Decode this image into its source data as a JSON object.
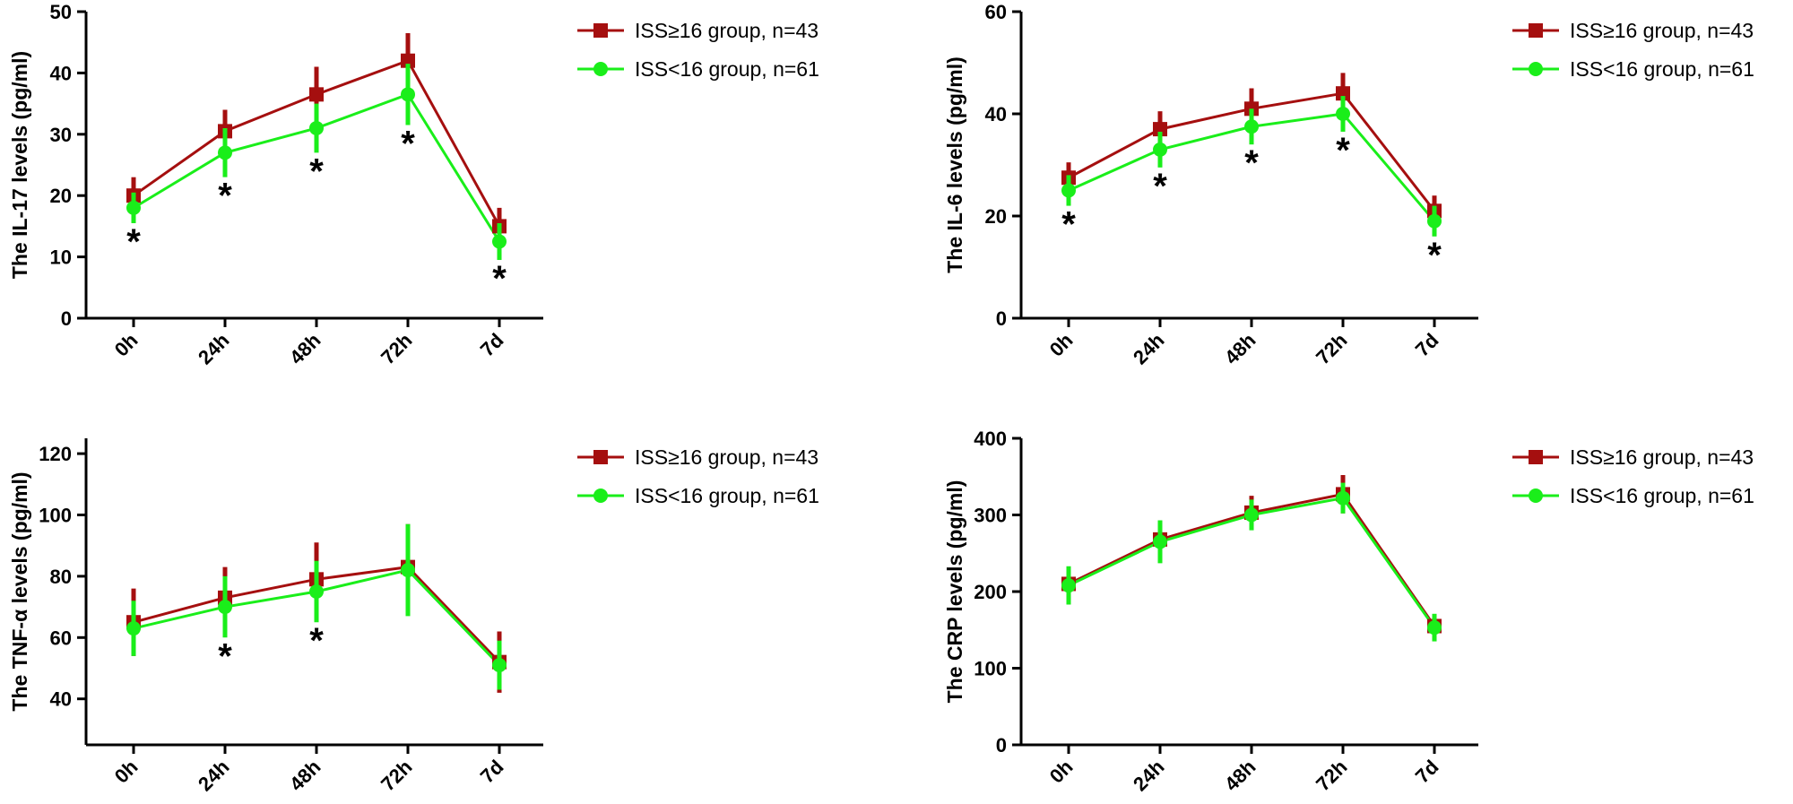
{
  "chart_data": [
    {
      "type": "line",
      "y_label": "The IL-17 levels (pg/ml)",
      "categories": [
        "0h",
        "24h",
        "48h",
        "72h",
        "7d"
      ],
      "ylim": [
        0,
        50
      ],
      "yticks": [
        0,
        10,
        20,
        30,
        40,
        50
      ],
      "series": [
        {
          "name": "ISS≥16 group, n=43",
          "color": "#a50f0f",
          "marker": "square",
          "values": [
            20,
            30.5,
            36.5,
            42,
            15
          ],
          "errors": [
            3,
            3.5,
            4.5,
            4.5,
            3
          ]
        },
        {
          "name": "ISS<16 group, n=61",
          "color": "#1aee1a",
          "marker": "circle",
          "values": [
            18,
            27,
            31,
            36.5,
            12.5
          ],
          "errors": [
            2.5,
            4,
            4,
            5,
            3
          ]
        }
      ],
      "annotations": [
        {
          "text": "*",
          "category": "0h"
        },
        {
          "text": "*",
          "category": "24h"
        },
        {
          "text": "*",
          "category": "48h"
        },
        {
          "text": "*",
          "category": "72h"
        },
        {
          "text": "*",
          "category": "7d"
        }
      ]
    },
    {
      "type": "line",
      "y_label": "The IL-6 levels (pg/ml)",
      "categories": [
        "0h",
        "24h",
        "48h",
        "72h",
        "7d"
      ],
      "ylim": [
        0,
        60
      ],
      "yticks": [
        0,
        20,
        40,
        60
      ],
      "series": [
        {
          "name": "ISS≥16 group, n=43",
          "color": "#a50f0f",
          "marker": "square",
          "values": [
            27.5,
            37,
            41,
            44,
            21
          ],
          "errors": [
            3,
            3.5,
            4,
            4,
            3
          ]
        },
        {
          "name": "ISS<16 group, n=61",
          "color": "#1aee1a",
          "marker": "circle",
          "values": [
            25,
            33,
            37.5,
            40,
            19
          ],
          "errors": [
            3,
            3.5,
            3.5,
            3.5,
            3
          ]
        }
      ],
      "annotations": [
        {
          "text": "*",
          "category": "0h"
        },
        {
          "text": "*",
          "category": "24h"
        },
        {
          "text": "*",
          "category": "48h"
        },
        {
          "text": "*",
          "category": "72h"
        },
        {
          "text": "*",
          "category": "7d"
        }
      ]
    },
    {
      "type": "line",
      "y_label": "The TNF-α levels (pg/ml)",
      "categories": [
        "0h",
        "24h",
        "48h",
        "72h",
        "7d"
      ],
      "ylim": [
        25,
        125
      ],
      "yticks": [
        40,
        60,
        80,
        100,
        120
      ],
      "series": [
        {
          "name": "ISS≥16 group, n=43",
          "color": "#a50f0f",
          "marker": "square",
          "values": [
            65,
            73,
            79,
            83,
            52
          ],
          "errors": [
            11,
            10,
            12,
            14,
            10
          ]
        },
        {
          "name": "ISS<16 group, n=61",
          "color": "#1aee1a",
          "marker": "circle",
          "values": [
            63,
            70,
            75,
            82,
            51
          ],
          "errors": [
            9,
            10,
            10,
            15,
            8
          ]
        }
      ],
      "annotations": [
        {
          "text": "*",
          "category": "24h"
        },
        {
          "text": "*",
          "category": "48h"
        }
      ]
    },
    {
      "type": "line",
      "y_label": "The CRP levels (pg/ml)",
      "categories": [
        "0h",
        "24h",
        "48h",
        "72h",
        "7d"
      ],
      "ylim": [
        0,
        400
      ],
      "yticks": [
        0,
        100,
        200,
        300,
        400
      ],
      "series": [
        {
          "name": "ISS≥16 group, n=43",
          "color": "#a50f0f",
          "marker": "square",
          "values": [
            210,
            268,
            303,
            327,
            155
          ],
          "errors": [
            20,
            20,
            22,
            25,
            15
          ]
        },
        {
          "name": "ISS<16 group, n=61",
          "color": "#1aee1a",
          "marker": "circle",
          "values": [
            208,
            265,
            300,
            322,
            153
          ],
          "errors": [
            25,
            28,
            20,
            20,
            18
          ]
        }
      ],
      "annotations": []
    }
  ]
}
